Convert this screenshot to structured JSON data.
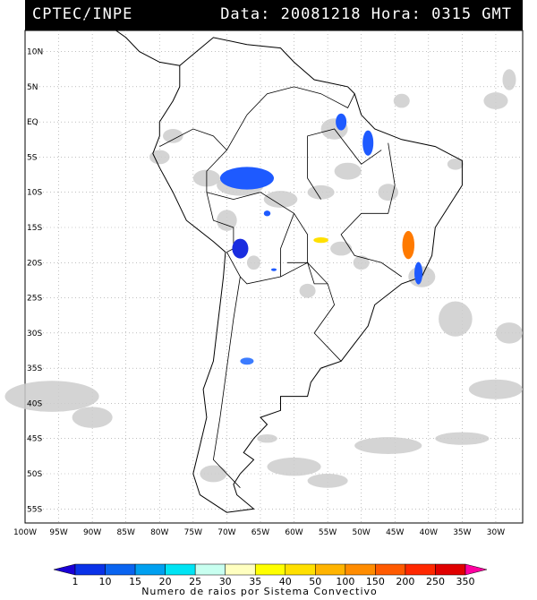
{
  "header": {
    "source": "CPTEC/INPE",
    "stamp": "Data: 20081218 Hora: 0315 GMT"
  },
  "axes": {
    "lat_labels": [
      "10N",
      "5N",
      "EQ",
      "5S",
      "10S",
      "15S",
      "20S",
      "25S",
      "30S",
      "35S",
      "40S",
      "45S",
      "50S",
      "55S"
    ],
    "lon_labels": [
      "100W",
      "95W",
      "90W",
      "85W",
      "80W",
      "75W",
      "70W",
      "65W",
      "60W",
      "55W",
      "50W",
      "45W",
      "40W",
      "35W",
      "30W"
    ]
  },
  "legend": {
    "values": [
      "1",
      "10",
      "15",
      "20",
      "25",
      "30",
      "35",
      "40",
      "50",
      "100",
      "150",
      "200",
      "250",
      "350"
    ],
    "colors": [
      "#1a00d6",
      "#0a32e8",
      "#0a64f0",
      "#00a0f0",
      "#00e4f4",
      "#c8fff0",
      "#ffffc0",
      "#ffff00",
      "#ffe000",
      "#ffb400",
      "#ff8c00",
      "#ff5a00",
      "#ff2800",
      "#e00000",
      "#ff00a0"
    ],
    "caption": "Numero de raios por Sistema Convectivo"
  },
  "cells": [
    {
      "name": "amazon-west",
      "lat": -8,
      "lon": -67,
      "rx": 4.0,
      "ry": 1.6,
      "color": "#1e5aff"
    },
    {
      "name": "para-north",
      "lat": 0,
      "lon": -53,
      "rx": 0.8,
      "ry": 1.2,
      "color": "#1e5aff"
    },
    {
      "name": "para-east",
      "lat": -3,
      "lon": -49,
      "rx": 0.8,
      "ry": 1.8,
      "color": "#1e5aff"
    },
    {
      "name": "bolivia",
      "lat": -18,
      "lon": -68,
      "rx": 1.2,
      "ry": 1.4,
      "color": "#1a2de0"
    },
    {
      "name": "rondonia",
      "lat": -13,
      "lon": -64,
      "rx": 0.5,
      "ry": 0.4,
      "color": "#1e5aff"
    },
    {
      "name": "paraguay",
      "lat": -21,
      "lon": -63,
      "rx": 0.4,
      "ry": 0.2,
      "color": "#1e5aff"
    },
    {
      "name": "argentina",
      "lat": -34,
      "lon": -67,
      "rx": 1.0,
      "ry": 0.5,
      "color": "#3c7cff"
    },
    {
      "name": "goias-yellow",
      "lat": -16.8,
      "lon": -56,
      "rx": 1.1,
      "ry": 0.4,
      "color": "#ffe000"
    },
    {
      "name": "bahia-orange",
      "lat": -17.5,
      "lon": -43,
      "rx": 0.9,
      "ry": 2.0,
      "color": "#ff7a00"
    },
    {
      "name": "es-blue",
      "lat": -21.5,
      "lon": -41.5,
      "rx": 0.6,
      "ry": 1.6,
      "color": "#1e5aff"
    }
  ]
}
